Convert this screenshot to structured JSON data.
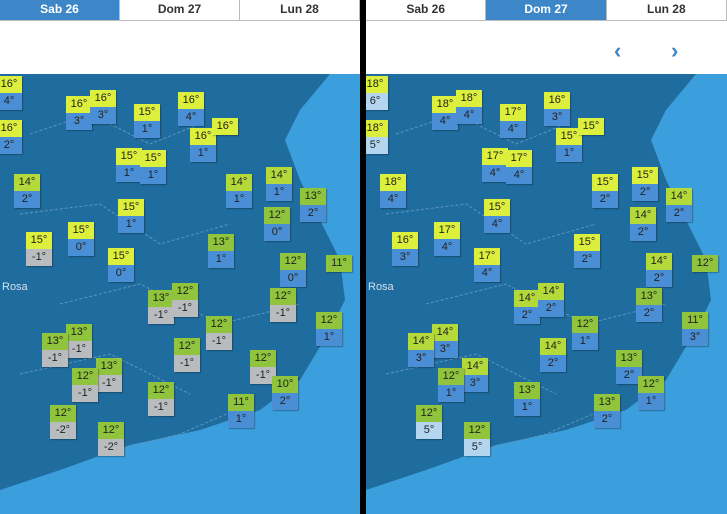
{
  "panels": [
    {
      "tabs": [
        "Sab 26",
        "Dom 27",
        "Lun 28"
      ],
      "active_tab": 0,
      "place_label": "Rosa",
      "markers": [
        {
          "max": "16°",
          "min": "4°"
        },
        {
          "max": "16°",
          "min": "3°"
        },
        {
          "max": "16°",
          "min": "3°"
        },
        {
          "max": "15°",
          "min": "1°"
        },
        {
          "max": "16°",
          "min": "4°"
        },
        {
          "max": "16°",
          "min": "1°"
        },
        {
          "max": "16°"
        },
        {
          "max": "16°",
          "min": "2°"
        },
        {
          "max": "15°",
          "min": "1°"
        },
        {
          "max": "15°",
          "min": "1°"
        },
        {
          "max": "14°",
          "min": "2°"
        },
        {
          "max": "14°",
          "min": "1°"
        },
        {
          "max": "14°",
          "min": "1°"
        },
        {
          "max": "13°",
          "min": "2°"
        },
        {
          "max": "15°",
          "min": "1°"
        },
        {
          "max": "12°",
          "min": "0°"
        },
        {
          "max": "15°",
          "min": "0°"
        },
        {
          "max": "15°",
          "min": "-1°"
        },
        {
          "max": "15°",
          "min": "0°"
        },
        {
          "max": "13°",
          "min": "1°"
        },
        {
          "max": "12°",
          "min": "0°"
        },
        {
          "max": "11°"
        },
        {
          "max": "13°",
          "min": "-1°"
        },
        {
          "max": "12°",
          "min": "-1°"
        },
        {
          "max": "12°",
          "min": "-1°"
        },
        {
          "max": "12°",
          "min": "1°"
        },
        {
          "max": "12°",
          "min": "-1°"
        },
        {
          "max": "13°",
          "min": "-1°"
        },
        {
          "max": "13°",
          "min": "-1°"
        },
        {
          "max": "12°",
          "min": "-1°"
        },
        {
          "max": "13°",
          "min": "-1°"
        },
        {
          "max": "12°",
          "min": "-1°"
        },
        {
          "max": "12°",
          "min": "-1°"
        },
        {
          "max": "10°",
          "min": "2°"
        },
        {
          "max": "12°",
          "min": "-1°"
        },
        {
          "max": "11°",
          "min": "1°"
        },
        {
          "max": "12°",
          "min": "-2°"
        },
        {
          "max": "12°",
          "min": "-2°"
        }
      ]
    },
    {
      "tabs": [
        "Sab 26",
        "Dom 27",
        "Lun 28"
      ],
      "active_tab": 1,
      "place_label": "Rosa",
      "markers": [
        {
          "max": "18°",
          "min": "6°"
        },
        {
          "max": "18°",
          "min": "4°"
        },
        {
          "max": "18°",
          "min": "4°"
        },
        {
          "max": "17°",
          "min": "4°"
        },
        {
          "max": "16°",
          "min": "3°"
        },
        {
          "max": "15°",
          "min": "1°"
        },
        {
          "max": "15°"
        },
        {
          "max": "18°",
          "min": "5°"
        },
        {
          "max": "17°",
          "min": "4°"
        },
        {
          "max": "17°",
          "min": "4°"
        },
        {
          "max": "18°",
          "min": "4°"
        },
        {
          "max": "15°",
          "min": "2°"
        },
        {
          "max": "15°",
          "min": "2°"
        },
        {
          "max": "14°",
          "min": "2°"
        },
        {
          "max": "15°",
          "min": "4°"
        },
        {
          "max": "14°",
          "min": "2°"
        },
        {
          "max": "17°",
          "min": "4°"
        },
        {
          "max": "16°",
          "min": "3°"
        },
        {
          "max": "17°",
          "min": "4°"
        },
        {
          "max": "15°",
          "min": "2°"
        },
        {
          "max": "14°",
          "min": "2°"
        },
        {
          "max": "12°"
        },
        {
          "max": "14°",
          "min": "2°"
        },
        {
          "max": "14°",
          "min": "2°"
        },
        {
          "max": "13°",
          "min": "2°"
        },
        {
          "max": "11°",
          "min": "3°"
        },
        {
          "max": "12°",
          "min": "1°"
        },
        {
          "max": "14°",
          "min": "3°"
        },
        {
          "max": "14°",
          "min": "3°"
        },
        {
          "max": "14°",
          "min": "2°"
        },
        {
          "max": "14°",
          "min": "3°"
        },
        {
          "max": "12°",
          "min": "1°"
        },
        {
          "max": "13°",
          "min": "2°"
        },
        {
          "max": "12°",
          "min": "1°"
        },
        {
          "max": "13°",
          "min": "1°"
        },
        {
          "max": "13°",
          "min": "2°"
        },
        {
          "max": "12°",
          "min": "5°"
        },
        {
          "max": "12°",
          "min": "5°"
        }
      ]
    }
  ]
}
